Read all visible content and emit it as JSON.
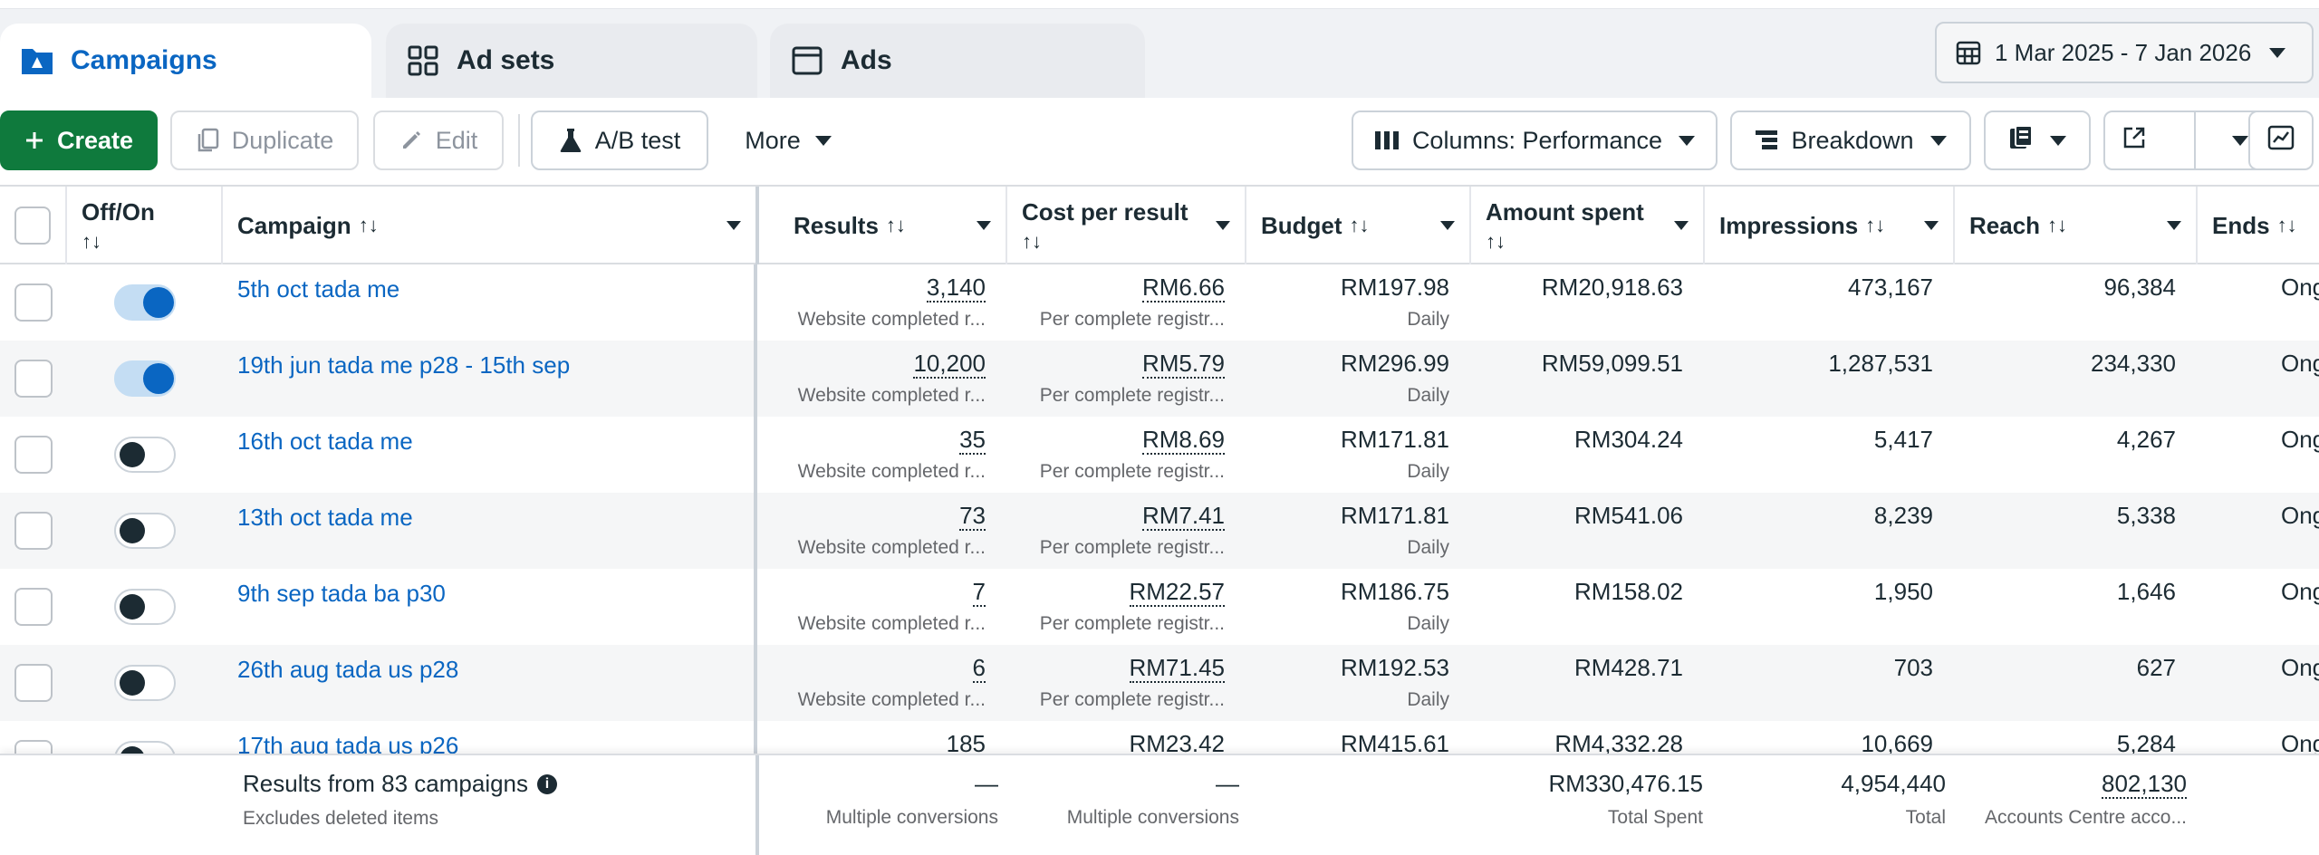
{
  "tabs": [
    {
      "label": "Campaigns",
      "icon": "campaign-folder-icon"
    },
    {
      "label": "Ad sets",
      "icon": "grid-icon"
    },
    {
      "label": "Ads",
      "icon": "ad-window-icon"
    }
  ],
  "date_range": "1 Mar 2025 - 7 Jan 2026",
  "toolbar": {
    "create": "Create",
    "duplicate": "Duplicate",
    "edit": "Edit",
    "ab_test": "A/B test",
    "more": "More",
    "columns": "Columns: Performance",
    "breakdown": "Breakdown"
  },
  "columns": {
    "off_on": "Off/On",
    "campaign": "Campaign",
    "results": "Results",
    "cost_per_result": "Cost per result",
    "budget": "Budget",
    "amount_spent": "Amount spent",
    "impressions": "Impressions",
    "reach": "Reach",
    "ends": "Ends",
    "sort_glyph": "↑↓"
  },
  "rows": [
    {
      "on": true,
      "name": "5th oct tada me",
      "results": "3,140",
      "results_sub": "Website completed r...",
      "cpr": "RM6.66",
      "cpr_sub": "Per complete registr...",
      "budget": "RM197.98",
      "budget_sub": "Daily",
      "spent": "RM20,918.63",
      "impressions": "473,167",
      "reach": "96,384",
      "ends": "Ong"
    },
    {
      "on": true,
      "name": "19th jun tada me p28 - 15th sep",
      "results": "10,200",
      "results_sub": "Website completed r...",
      "cpr": "RM5.79",
      "cpr_sub": "Per complete registr...",
      "budget": "RM296.99",
      "budget_sub": "Daily",
      "spent": "RM59,099.51",
      "impressions": "1,287,531",
      "reach": "234,330",
      "ends": "Ong"
    },
    {
      "on": false,
      "name": "16th oct tada me",
      "results": "35",
      "results_sub": "Website completed r...",
      "cpr": "RM8.69",
      "cpr_sub": "Per complete registr...",
      "budget": "RM171.81",
      "budget_sub": "Daily",
      "spent": "RM304.24",
      "impressions": "5,417",
      "reach": "4,267",
      "ends": "Ong"
    },
    {
      "on": false,
      "name": "13th oct tada me",
      "results": "73",
      "results_sub": "Website completed r...",
      "cpr": "RM7.41",
      "cpr_sub": "Per complete registr...",
      "budget": "RM171.81",
      "budget_sub": "Daily",
      "spent": "RM541.06",
      "impressions": "8,239",
      "reach": "5,338",
      "ends": "Ong"
    },
    {
      "on": false,
      "name": "9th sep tada ba p30",
      "results": "7",
      "results_sub": "Website completed r...",
      "cpr": "RM22.57",
      "cpr_sub": "Per complete registr...",
      "budget": "RM186.75",
      "budget_sub": "Daily",
      "spent": "RM158.02",
      "impressions": "1,950",
      "reach": "1,646",
      "ends": "Ong"
    },
    {
      "on": false,
      "name": "26th aug tada us p28",
      "results": "6",
      "results_sub": "Website completed r...",
      "cpr": "RM71.45",
      "cpr_sub": "Per complete registr...",
      "budget": "RM192.53",
      "budget_sub": "Daily",
      "spent": "RM428.71",
      "impressions": "703",
      "reach": "627",
      "ends": "Ong"
    },
    {
      "on": false,
      "name": "17th aug tada us p26",
      "results": "185",
      "results_sub": "",
      "cpr": "RM23.42",
      "cpr_sub": "",
      "budget": "RM415.61",
      "budget_sub": "",
      "spent": "RM4,332.28",
      "impressions": "10,669",
      "reach": "5,284",
      "ends": "Ong"
    }
  ],
  "footer": {
    "title": "Results from 83 campaigns",
    "info_glyph": "i",
    "subtitle": "Excludes deleted items",
    "results": "—",
    "results_sub": "Multiple conversions",
    "cpr": "—",
    "cpr_sub": "Multiple conversions",
    "spent": "RM330,476.15",
    "spent_sub": "Total Spent",
    "impressions": "4,954,440",
    "impressions_sub": "Total",
    "reach": "802,130",
    "reach_sub": "Accounts Centre acco..."
  },
  "colors": {
    "accent": "#0a66c2",
    "create_green": "#0f7a3d"
  }
}
